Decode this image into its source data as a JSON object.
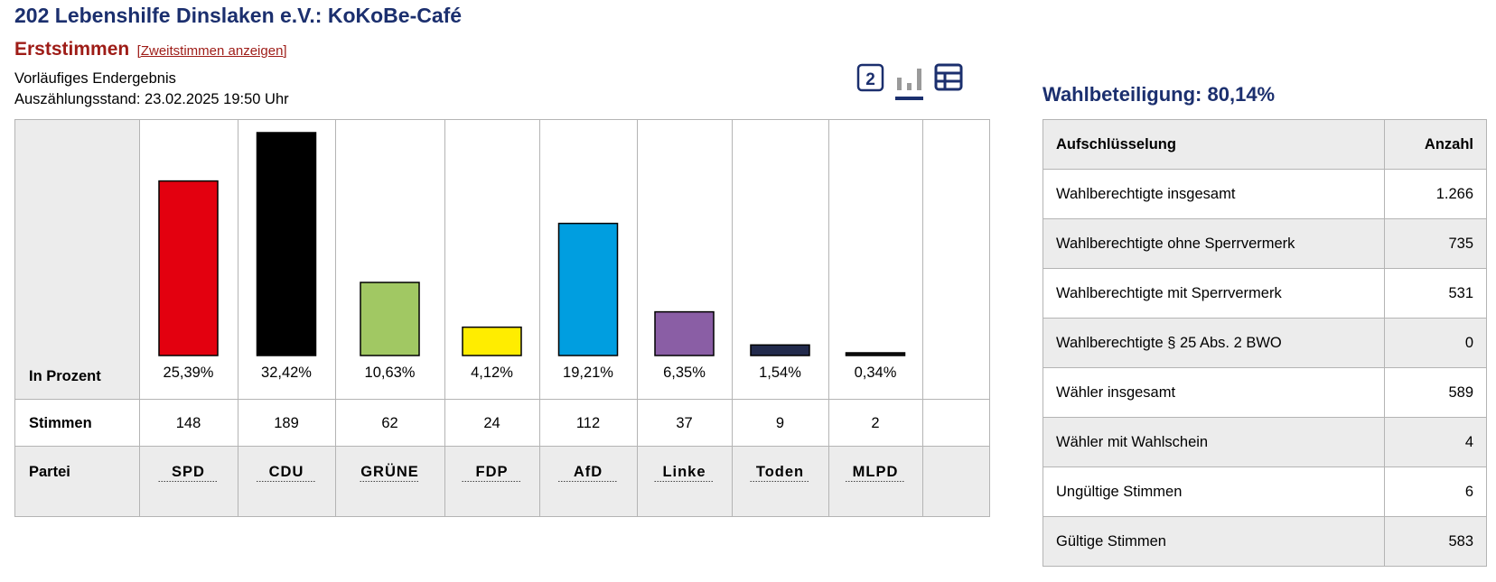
{
  "header": {
    "title": "202 Lebenshilfe Dinslaken e.V.: KoKoBe-Café",
    "erststimmen": "Erststimmen",
    "zweitstimmen_link": "[Zweitstimmen anzeigen]",
    "status": "Vorläufiges Endergebnis",
    "count_state": "Auszählungsstand: 23.02.2025 19:50 Uhr"
  },
  "view_icons": {
    "badge_label": "2",
    "accent": "#1b2f6e",
    "icons": [
      "second-vote-badge-icon",
      "bar-chart-icon",
      "table-view-icon"
    ]
  },
  "chart_data": {
    "type": "bar",
    "row_labels": {
      "percent": "In Prozent",
      "votes": "Stimmen",
      "party": "Partei"
    },
    "categories": [
      "SPD",
      "CDU",
      "GRÜNE",
      "FDP",
      "AfD",
      "Linke",
      "Toden",
      "MLPD"
    ],
    "values": [
      25.39,
      32.42,
      10.63,
      4.12,
      19.21,
      6.35,
      1.54,
      0.34
    ],
    "value_labels": [
      "25,39%",
      "32,42%",
      "10,63%",
      "4,12%",
      "19,21%",
      "6,35%",
      "1,54%",
      "0,34%"
    ],
    "votes": [
      "148",
      "189",
      "62",
      "24",
      "112",
      "37",
      "9",
      "2"
    ],
    "colors": [
      "#e3000f",
      "#000000",
      "#a1c863",
      "#ffed00",
      "#009ee0",
      "#8a5ea5",
      "#222a4c",
      "#111111"
    ],
    "ylim": [
      0,
      32.42
    ]
  },
  "turnout": {
    "label": "Wahlbeteiligung: 80,14%"
  },
  "stats_table": {
    "headers": [
      "Aufschlüsselung",
      "Anzahl"
    ],
    "rows": [
      {
        "label": "Wahlberechtigte insgesamt",
        "value": "1.266"
      },
      {
        "label": "Wahlberechtigte ohne Sperrvermerk",
        "value": "735"
      },
      {
        "label": "Wahlberechtigte mit Sperrvermerk",
        "value": "531"
      },
      {
        "label": "Wahlberechtigte § 25 Abs. 2 BWO",
        "value": "0"
      },
      {
        "label": "Wähler insgesamt",
        "value": "589"
      },
      {
        "label": "Wähler mit Wahlschein",
        "value": "4"
      },
      {
        "label": "Ungültige Stimmen",
        "value": "6"
      },
      {
        "label": "Gültige Stimmen",
        "value": "583"
      }
    ]
  }
}
